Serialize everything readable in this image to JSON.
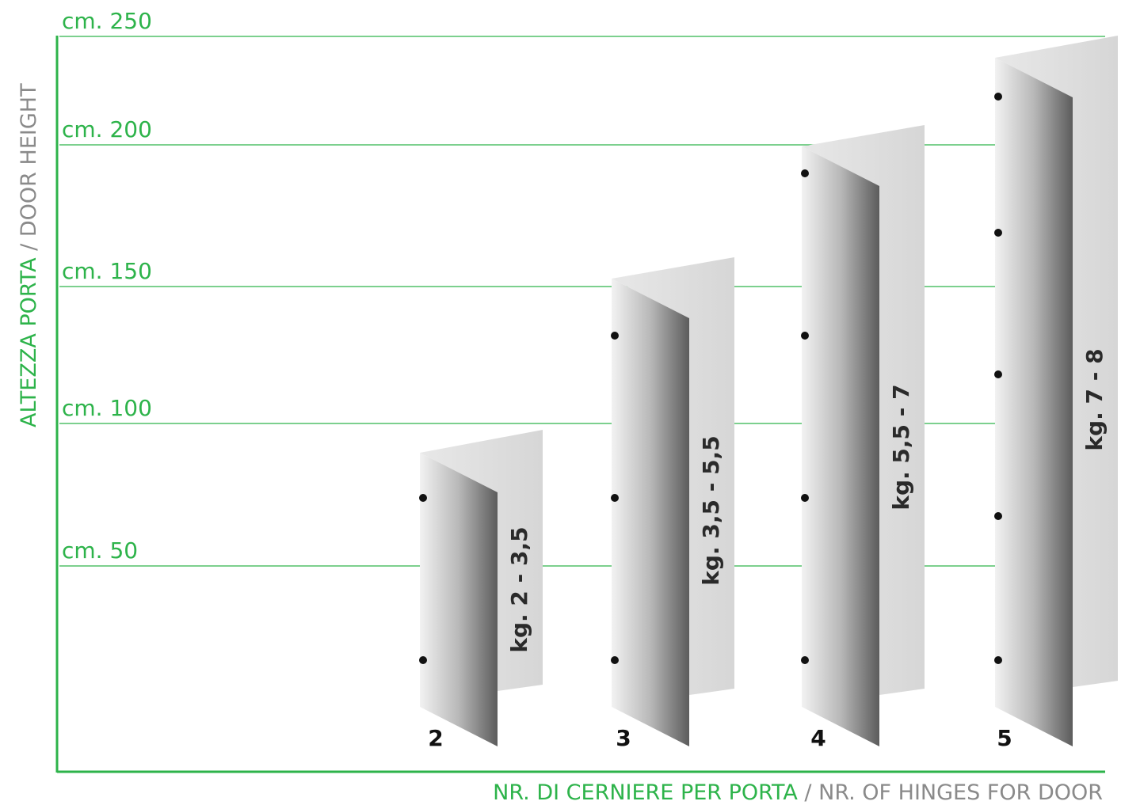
{
  "axis": {
    "y_title_green": "ALTEZZA PORTA",
    "y_title_sep": "/",
    "y_title_grey": "DOOR HEIGHT",
    "ticks": [
      "cm. 250",
      "cm. 200",
      "cm. 150",
      "cm. 100",
      "cm. 50"
    ],
    "x_title_green": "NR. DI CERNIERE PER PORTA",
    "x_title_sep": "/",
    "x_title_grey": "NR. OF HINGES FOR DOOR"
  },
  "doors": [
    {
      "hinges": "2",
      "weight": "kg. 2 - 3,5"
    },
    {
      "hinges": "3",
      "weight": "kg. 3,5 - 5,5"
    },
    {
      "hinges": "4",
      "weight": "kg. 5,5 - 7"
    },
    {
      "hinges": "5",
      "weight": "kg. 7 - 8"
    }
  ]
}
